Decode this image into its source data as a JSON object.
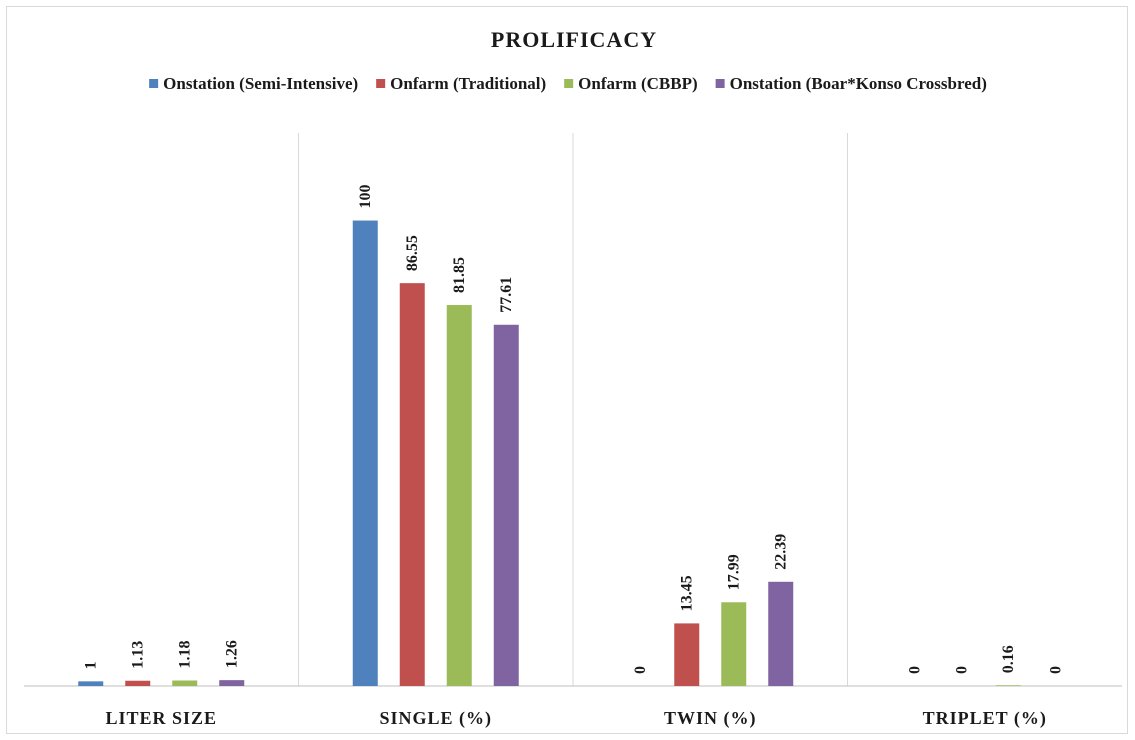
{
  "chart_data": {
    "type": "bar",
    "title": "PROLIFICACY",
    "categories": [
      "LITER SIZE",
      "SINGLE (%)",
      "TWIN (%)",
      "TRIPLET (%)"
    ],
    "series": [
      {
        "name": "Onstation (Semi-Intensive)",
        "color": "#4f81bd",
        "values": [
          1,
          100,
          0,
          0
        ],
        "labels": [
          "1",
          "100",
          "0",
          "0"
        ]
      },
      {
        "name": "Onfarm (Traditional)",
        "color": "#c0504d",
        "values": [
          1.13,
          86.55,
          13.45,
          0
        ],
        "labels": [
          "1.13",
          "86.55",
          "13.45",
          "0"
        ]
      },
      {
        "name": "Onfarm (CBBP)",
        "color": "#9bbb59",
        "values": [
          1.18,
          81.85,
          17.99,
          0.16
        ],
        "labels": [
          "1.18",
          "81.85",
          "17.99",
          "0.16"
        ]
      },
      {
        "name": "Onstation (Boar*Konso Crossbred)",
        "color": "#8064a2",
        "values": [
          1.26,
          77.61,
          22.39,
          0
        ],
        "labels": [
          "1.26",
          "77.61",
          "22.39",
          "0"
        ]
      }
    ],
    "ylim": [
      0,
      110
    ],
    "grid": false,
    "legend_position": "top",
    "xlabel": "",
    "ylabel": ""
  }
}
